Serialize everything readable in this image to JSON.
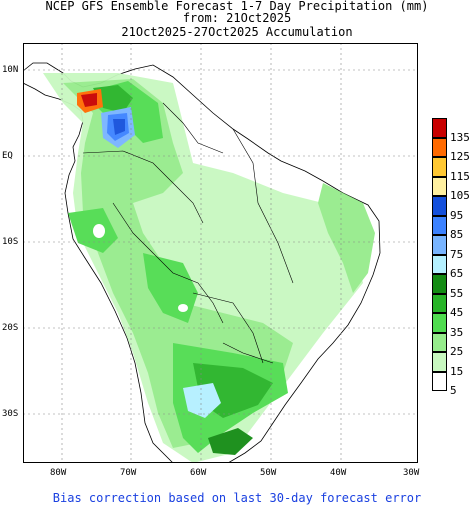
{
  "title_line1": "NCEP GFS Ensemble Forecast 1-7 Day Precipitation (mm)",
  "title_line2": "from: 21Oct2025",
  "title_line3": "21Oct2025-27Oct2025 Accumulation",
  "footer": "Bias correction based on last 30-day forecast error",
  "axes": {
    "lat_labels": [
      "10N",
      "EQ",
      "10S",
      "20S",
      "30S"
    ],
    "lon_labels": [
      "80W",
      "70W",
      "60W",
      "50W",
      "40W",
      "30W"
    ]
  },
  "legend": {
    "levels": [
      "135",
      "125",
      "115",
      "105",
      "95",
      "85",
      "75",
      "65",
      "55",
      "45",
      "35",
      "25",
      "15",
      "5"
    ],
    "colors": [
      "#c80000",
      "#ff6a00",
      "#ffc832",
      "#fff0a0",
      "#1450dc",
      "#3c82ff",
      "#78b4ff",
      "#b4f0ff",
      "#148c14",
      "#28b428",
      "#50dc50",
      "#96ec8c",
      "#c8f8c0",
      "#ffffff"
    ]
  },
  "map_colors": {
    "land": "#ffffff",
    "light_green": "#c8f8c0",
    "mid_green": "#96ec8c",
    "green": "#50dc50",
    "dark_green": "#28b428",
    "darkest_green": "#148c14",
    "light_blue": "#b4f0ff",
    "blue": "#3c82ff",
    "dark_blue": "#1450dc",
    "red": "#c80000",
    "orange": "#ff6a00"
  }
}
